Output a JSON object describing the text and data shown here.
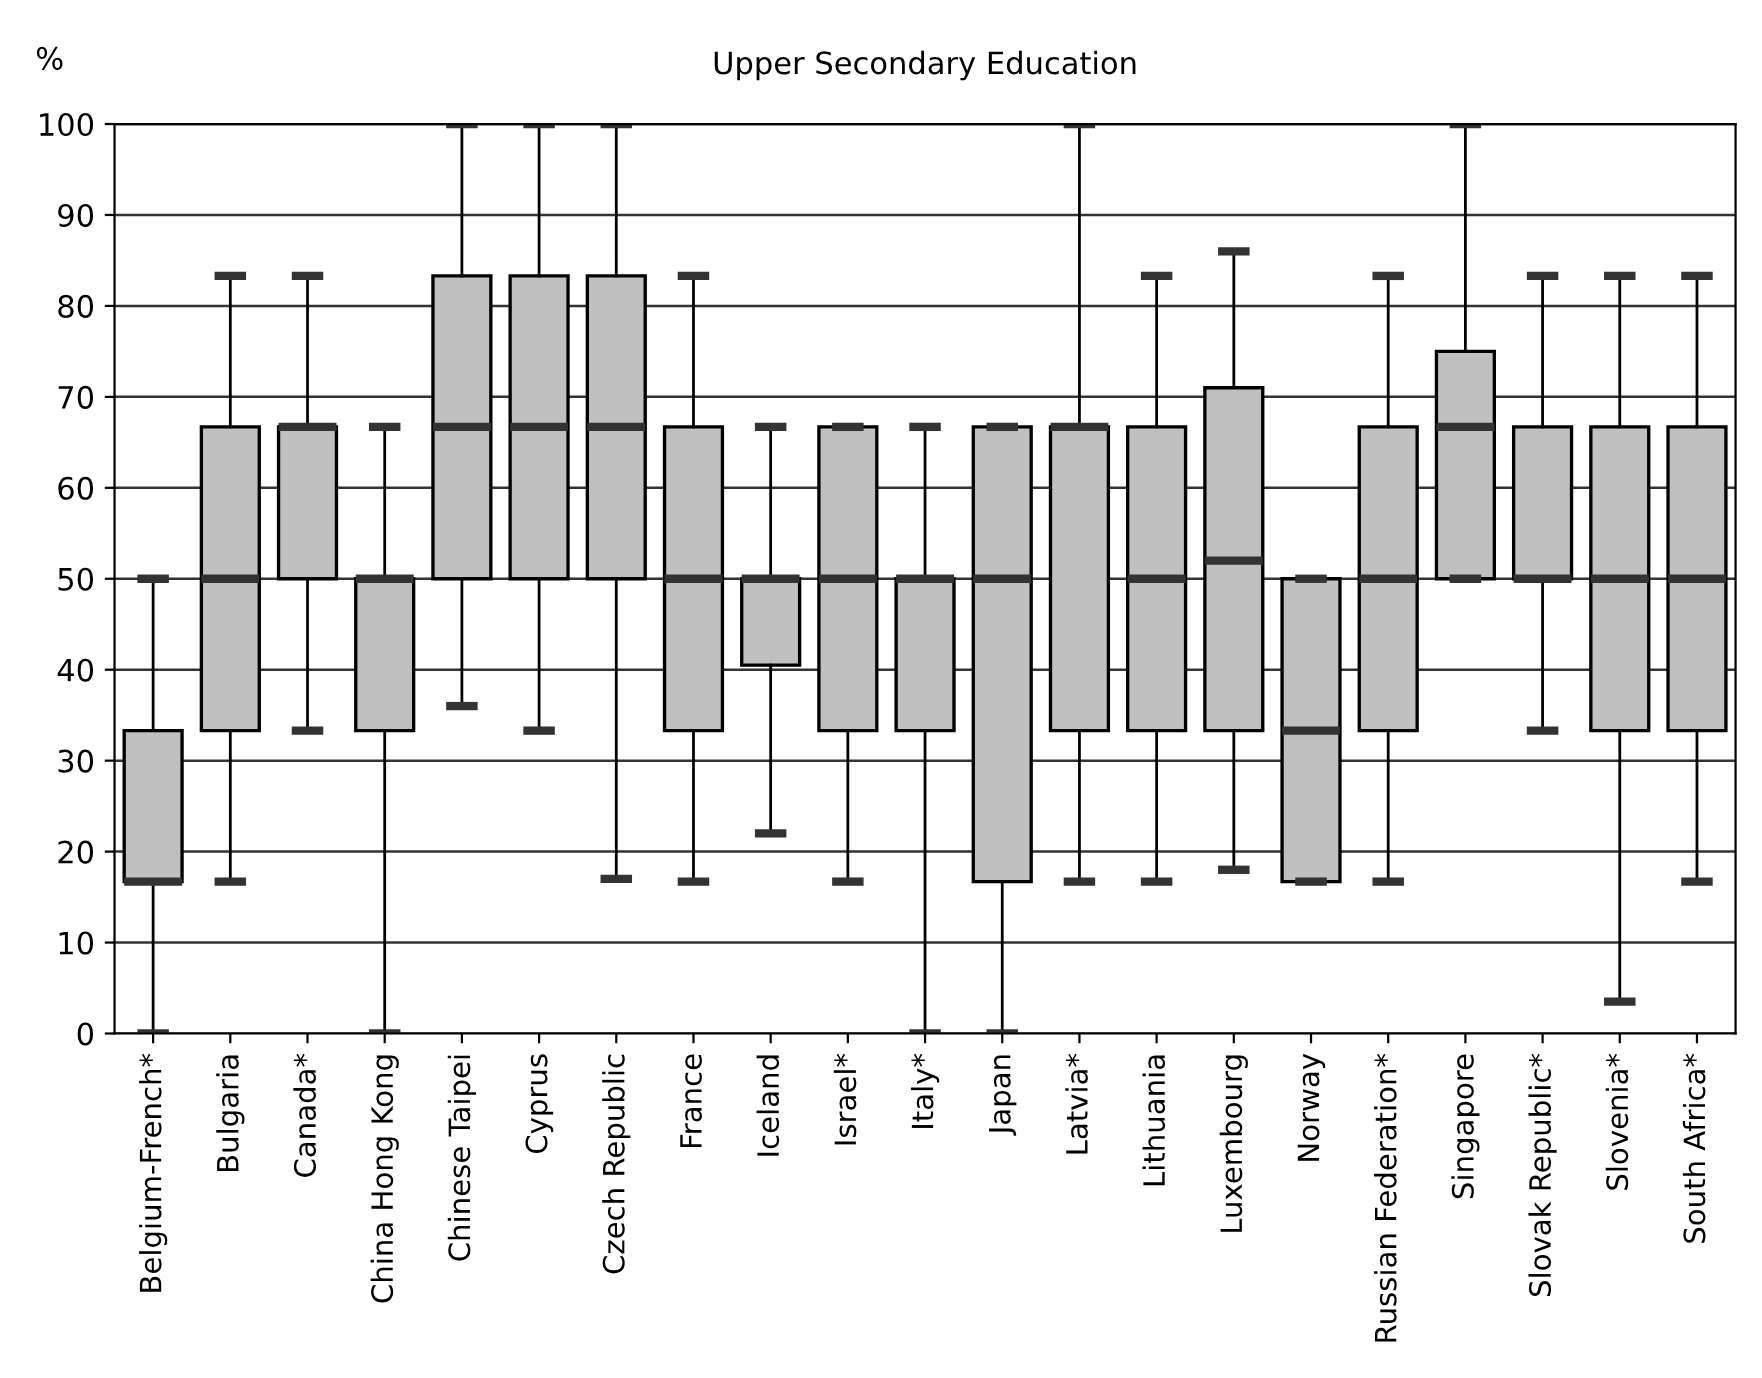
{
  "chart_data": {
    "type": "box",
    "title": "Upper Secondary Education",
    "ylabel": "%",
    "categories": [
      "Belgium-French*",
      "Bulgaria",
      "Canada*",
      "China Hong Kong",
      "Chinese Taipei",
      "Cyprus",
      "Czech Republic",
      "France",
      "Iceland",
      "Israel*",
      "Italy*",
      "Japan",
      "Latvia*",
      "Lithuania",
      "Luxembourg",
      "Norway",
      "Russian Federation*",
      "Singapore",
      "Slovak Republic*",
      "Slovenia*",
      "South Africa*"
    ],
    "boxes": [
      {
        "low": 0,
        "q1": 16.7,
        "median": 16.7,
        "q3": 33.3,
        "high": 50
      },
      {
        "low": 16.7,
        "q1": 33.3,
        "median": 50,
        "q3": 66.7,
        "high": 83.3
      },
      {
        "low": 33.3,
        "q1": 50,
        "median": 66.7,
        "q3": 66.7,
        "high": 83.3
      },
      {
        "low": 0,
        "q1": 33.3,
        "median": 50,
        "q3": 50,
        "high": 66.7
      },
      {
        "low": 36,
        "q1": 50,
        "median": 66.7,
        "q3": 83.3,
        "high": 100
      },
      {
        "low": 33.3,
        "q1": 50,
        "median": 66.7,
        "q3": 83.3,
        "high": 100
      },
      {
        "low": 17,
        "q1": 50,
        "median": 66.7,
        "q3": 83.3,
        "high": 100
      },
      {
        "low": 16.7,
        "q1": 33.3,
        "median": 50,
        "q3": 66.7,
        "high": 83.3
      },
      {
        "low": 22,
        "q1": 40.5,
        "median": 50,
        "q3": 50,
        "high": 66.7
      },
      {
        "low": 16.7,
        "q1": 33.3,
        "median": 50,
        "q3": 66.7,
        "high": 66.7
      },
      {
        "low": 0,
        "q1": 33.3,
        "median": 50,
        "q3": 50,
        "high": 66.7
      },
      {
        "low": 0,
        "q1": 16.7,
        "median": 50,
        "q3": 66.7,
        "high": 66.7
      },
      {
        "low": 16.7,
        "q1": 33.3,
        "median": 66.7,
        "q3": 66.7,
        "high": 100
      },
      {
        "low": 16.7,
        "q1": 33.3,
        "median": 50,
        "q3": 66.7,
        "high": 83.3
      },
      {
        "low": 18,
        "q1": 33.3,
        "median": 52,
        "q3": 71,
        "high": 86
      },
      {
        "low": 16.7,
        "q1": 16.7,
        "median": 33.3,
        "q3": 50,
        "high": 50
      },
      {
        "low": 16.7,
        "q1": 33.3,
        "median": 50,
        "q3": 66.7,
        "high": 83.3
      },
      {
        "low": 50,
        "q1": 50,
        "median": 66.7,
        "q3": 75,
        "high": 100
      },
      {
        "low": 33.3,
        "q1": 50,
        "median": 50,
        "q3": 66.7,
        "high": 83.3
      },
      {
        "low": 3.5,
        "q1": 33.3,
        "median": 50,
        "q3": 66.7,
        "high": 83.3
      },
      {
        "low": 16.7,
        "q1": 33.3,
        "median": 50,
        "q3": 66.7,
        "high": 83.3
      }
    ],
    "color": "#c0c0c0",
    "ylim": [
      0,
      100
    ],
    "yticks": [
      0,
      10,
      20,
      30,
      40,
      50,
      60,
      70,
      80,
      90,
      100
    ],
    "grid": "y"
  }
}
